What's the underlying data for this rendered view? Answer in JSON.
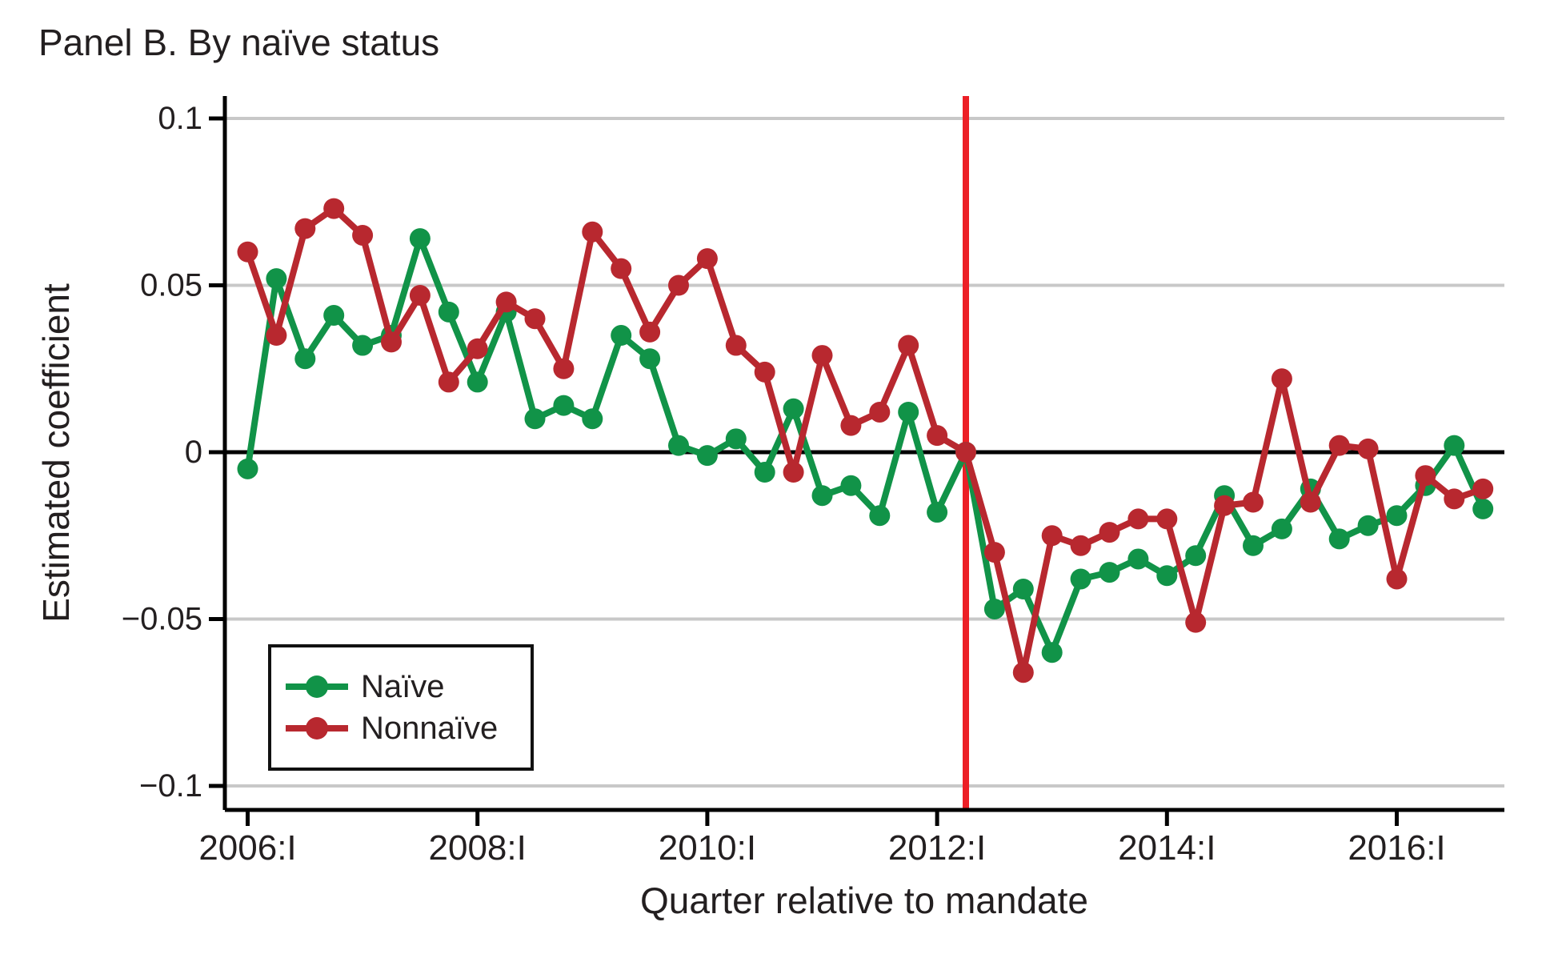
{
  "title": "Panel B. By naïve status",
  "chart_data": {
    "type": "line",
    "title": "Panel B. By naïve status",
    "xlabel": "Quarter relative to mandate",
    "ylabel": "Estimated coefficient",
    "x_unit": "quarter",
    "x_range": [
      "2006:I",
      "2016:IV"
    ],
    "ylim": [
      -0.107,
      0.107
    ],
    "grid": true,
    "legend_position": "bottom-left",
    "y_ticks": [
      {
        "label": "0.1",
        "value": 0.1
      },
      {
        "label": "0.05",
        "value": 0.05
      },
      {
        "label": "0",
        "value": 0
      },
      {
        "label": "−0.05",
        "value": -0.05
      },
      {
        "label": "−0.1",
        "value": -0.1
      }
    ],
    "x_ticks": [
      {
        "label": "2006:I",
        "index": 0
      },
      {
        "label": "2008:I",
        "index": 8
      },
      {
        "label": "2010:I",
        "index": 16
      },
      {
        "label": "2012:I",
        "index": 24
      },
      {
        "label": "2014:I",
        "index": 32
      },
      {
        "label": "2016:I",
        "index": 40
      }
    ],
    "mandate_line_index": 25,
    "mandate_quarter": "2012:II",
    "series": [
      {
        "name": "Naïve",
        "color": "#119348",
        "values": [
          -0.005,
          0.052,
          0.028,
          0.041,
          0.032,
          0.035,
          0.064,
          0.042,
          0.021,
          0.042,
          0.01,
          0.014,
          0.01,
          0.035,
          0.028,
          0.002,
          -0.001,
          0.004,
          -0.006,
          0.013,
          -0.013,
          -0.01,
          -0.019,
          0.012,
          -0.018,
          0.0,
          -0.047,
          -0.041,
          -0.06,
          -0.038,
          -0.036,
          -0.032,
          -0.037,
          -0.031,
          -0.013,
          -0.028,
          -0.023,
          -0.011,
          -0.026,
          -0.022,
          -0.019,
          -0.01,
          0.002,
          -0.017
        ]
      },
      {
        "name": "Nonnaïve",
        "color": "#B8282F",
        "values": [
          0.06,
          0.035,
          0.067,
          0.073,
          0.065,
          0.033,
          0.047,
          0.021,
          0.031,
          0.045,
          0.04,
          0.025,
          0.066,
          0.055,
          0.036,
          0.05,
          0.058,
          0.032,
          0.024,
          -0.006,
          0.029,
          0.008,
          0.012,
          0.032,
          0.005,
          0.0,
          -0.03,
          -0.066,
          -0.025,
          -0.028,
          -0.024,
          -0.02,
          -0.02,
          -0.051,
          -0.016,
          -0.015,
          0.022,
          -0.015,
          0.002,
          0.001,
          -0.038,
          -0.007,
          -0.014,
          -0.011
        ]
      }
    ],
    "colors": {
      "grid": "#c8c8c8",
      "axis": "#000000",
      "zero_line": "#000000",
      "mandate_line": "#ec1f26",
      "text": "#231f20"
    }
  }
}
